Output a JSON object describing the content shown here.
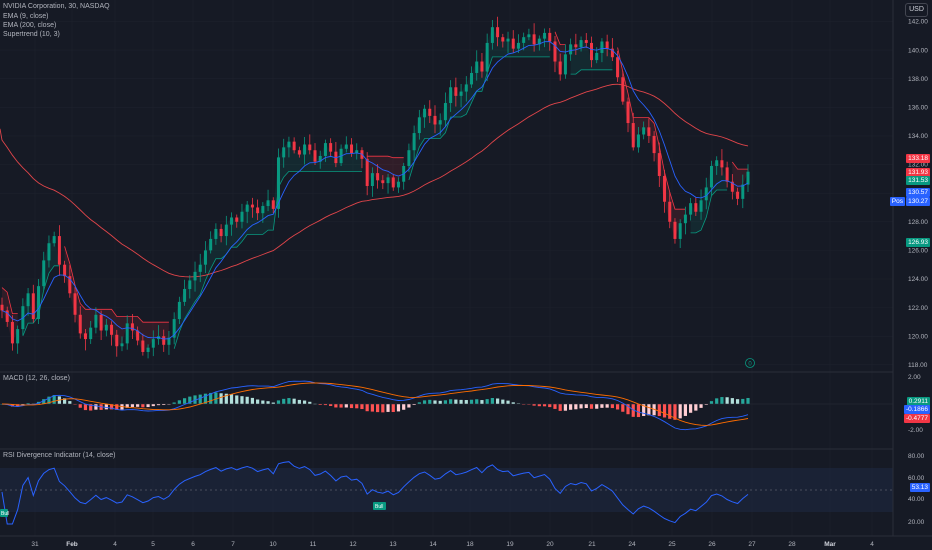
{
  "header": {
    "symbol_line": "NVIDIA Corporation, 30, NASDAQ",
    "indicators": [
      "EMA (9, close)",
      "EMA (200, close)",
      "Supertrend (10, 3)"
    ],
    "currency": "USD"
  },
  "panes": {
    "macd_title": "MACD (12, 26, close)",
    "rsi_title": "RSI Divergence Indicator (14, close)"
  },
  "price_axis": {
    "ticks": [
      "142.00",
      "140.00",
      "138.00",
      "136.00",
      "134.00",
      "132.00",
      "130.00",
      "128.00",
      "126.00",
      "124.00",
      "122.00",
      "120.00",
      "118.00"
    ],
    "tags": [
      {
        "text": "133.18",
        "color": "#f23645"
      },
      {
        "text": "131.93",
        "color": "#f23645"
      },
      {
        "text": "131.53",
        "color": "#089981"
      },
      {
        "text": "130.57",
        "color": "#2962ff"
      },
      {
        "text": "130.27",
        "color": "#2962ff"
      },
      {
        "text": "126.93",
        "color": "#089981"
      }
    ],
    "pos_label": "Pos"
  },
  "macd_axis": {
    "ticks": [
      "2.00",
      "-2.00"
    ],
    "tags": [
      {
        "text": "0.2911",
        "color": "#089981"
      },
      {
        "text": "-0.1866",
        "color": "#2962ff"
      },
      {
        "text": "-0.4777",
        "color": "#f23645"
      }
    ]
  },
  "rsi_axis": {
    "ticks": [
      "80.00",
      "60.00",
      "40.00",
      "20.00"
    ],
    "tag": {
      "text": "53.13",
      "color": "#2962ff"
    },
    "bull_labels": [
      "Bull",
      "Bull"
    ]
  },
  "time_axis": [
    "31",
    "Feb",
    "4",
    "5",
    "6",
    "7",
    "10",
    "11",
    "12",
    "13",
    "14",
    "18",
    "19",
    "20",
    "21",
    "24",
    "25",
    "26",
    "27",
    "28",
    "Mar",
    "4"
  ],
  "alert_badge": "0",
  "colors": {
    "up": "#089981",
    "down": "#f23645",
    "ema9": "#2962ff",
    "ema200": "#e0454a",
    "bg": "#161a25"
  },
  "chart_data": {
    "type": "candlestick",
    "title": "NVIDIA Corporation, 30, NASDAQ",
    "ylim": [
      117.5,
      143.5
    ],
    "close": [
      121.8,
      121.0,
      119.5,
      120.5,
      122.1,
      123.0,
      121.2,
      123.5,
      125.3,
      126.5,
      127.0,
      125.0,
      124.2,
      123.0,
      121.5,
      120.2,
      119.8,
      120.6,
      121.5,
      120.4,
      120.8,
      120.1,
      119.3,
      119.5,
      120.9,
      120.4,
      119.7,
      118.9,
      119.2,
      119.8,
      120.0,
      119.4,
      119.9,
      121.2,
      122.4,
      123.3,
      123.9,
      124.5,
      125.0,
      126.0,
      126.8,
      127.5,
      127.0,
      127.8,
      128.3,
      128.0,
      128.7,
      129.2,
      129.0,
      128.6,
      129.1,
      129.5,
      128.9,
      132.5,
      133.2,
      133.6,
      133.0,
      132.7,
      133.4,
      133.0,
      132.2,
      132.6,
      133.5,
      132.9,
      132.1,
      133.1,
      133.4,
      132.8,
      133.0,
      132.4,
      130.5,
      131.4,
      130.9,
      130.7,
      131.1,
      130.4,
      130.8,
      131.9,
      133.0,
      134.2,
      135.3,
      135.9,
      135.4,
      134.8,
      135.1,
      136.3,
      137.4,
      136.8,
      137.1,
      137.6,
      138.4,
      139.2,
      138.5,
      140.5,
      141.6,
      140.9,
      140.6,
      140.8,
      140.1,
      140.5,
      140.9,
      141.1,
      140.4,
      140.8,
      141.2,
      140.6,
      139.2,
      138.3,
      139.7,
      140.4,
      140.2,
      140.7,
      140.5,
      139.3,
      139.8,
      140.6,
      140.1,
      139.5,
      138.1,
      136.4,
      134.9,
      133.2,
      134.1,
      134.6,
      134.0,
      132.8,
      131.2,
      129.4,
      128.0,
      126.8,
      127.9,
      128.5,
      129.3,
      128.7,
      129.5,
      130.4,
      131.9,
      132.3,
      131.8,
      130.8,
      130.1,
      129.6,
      130.6,
      131.5
    ]
  }
}
